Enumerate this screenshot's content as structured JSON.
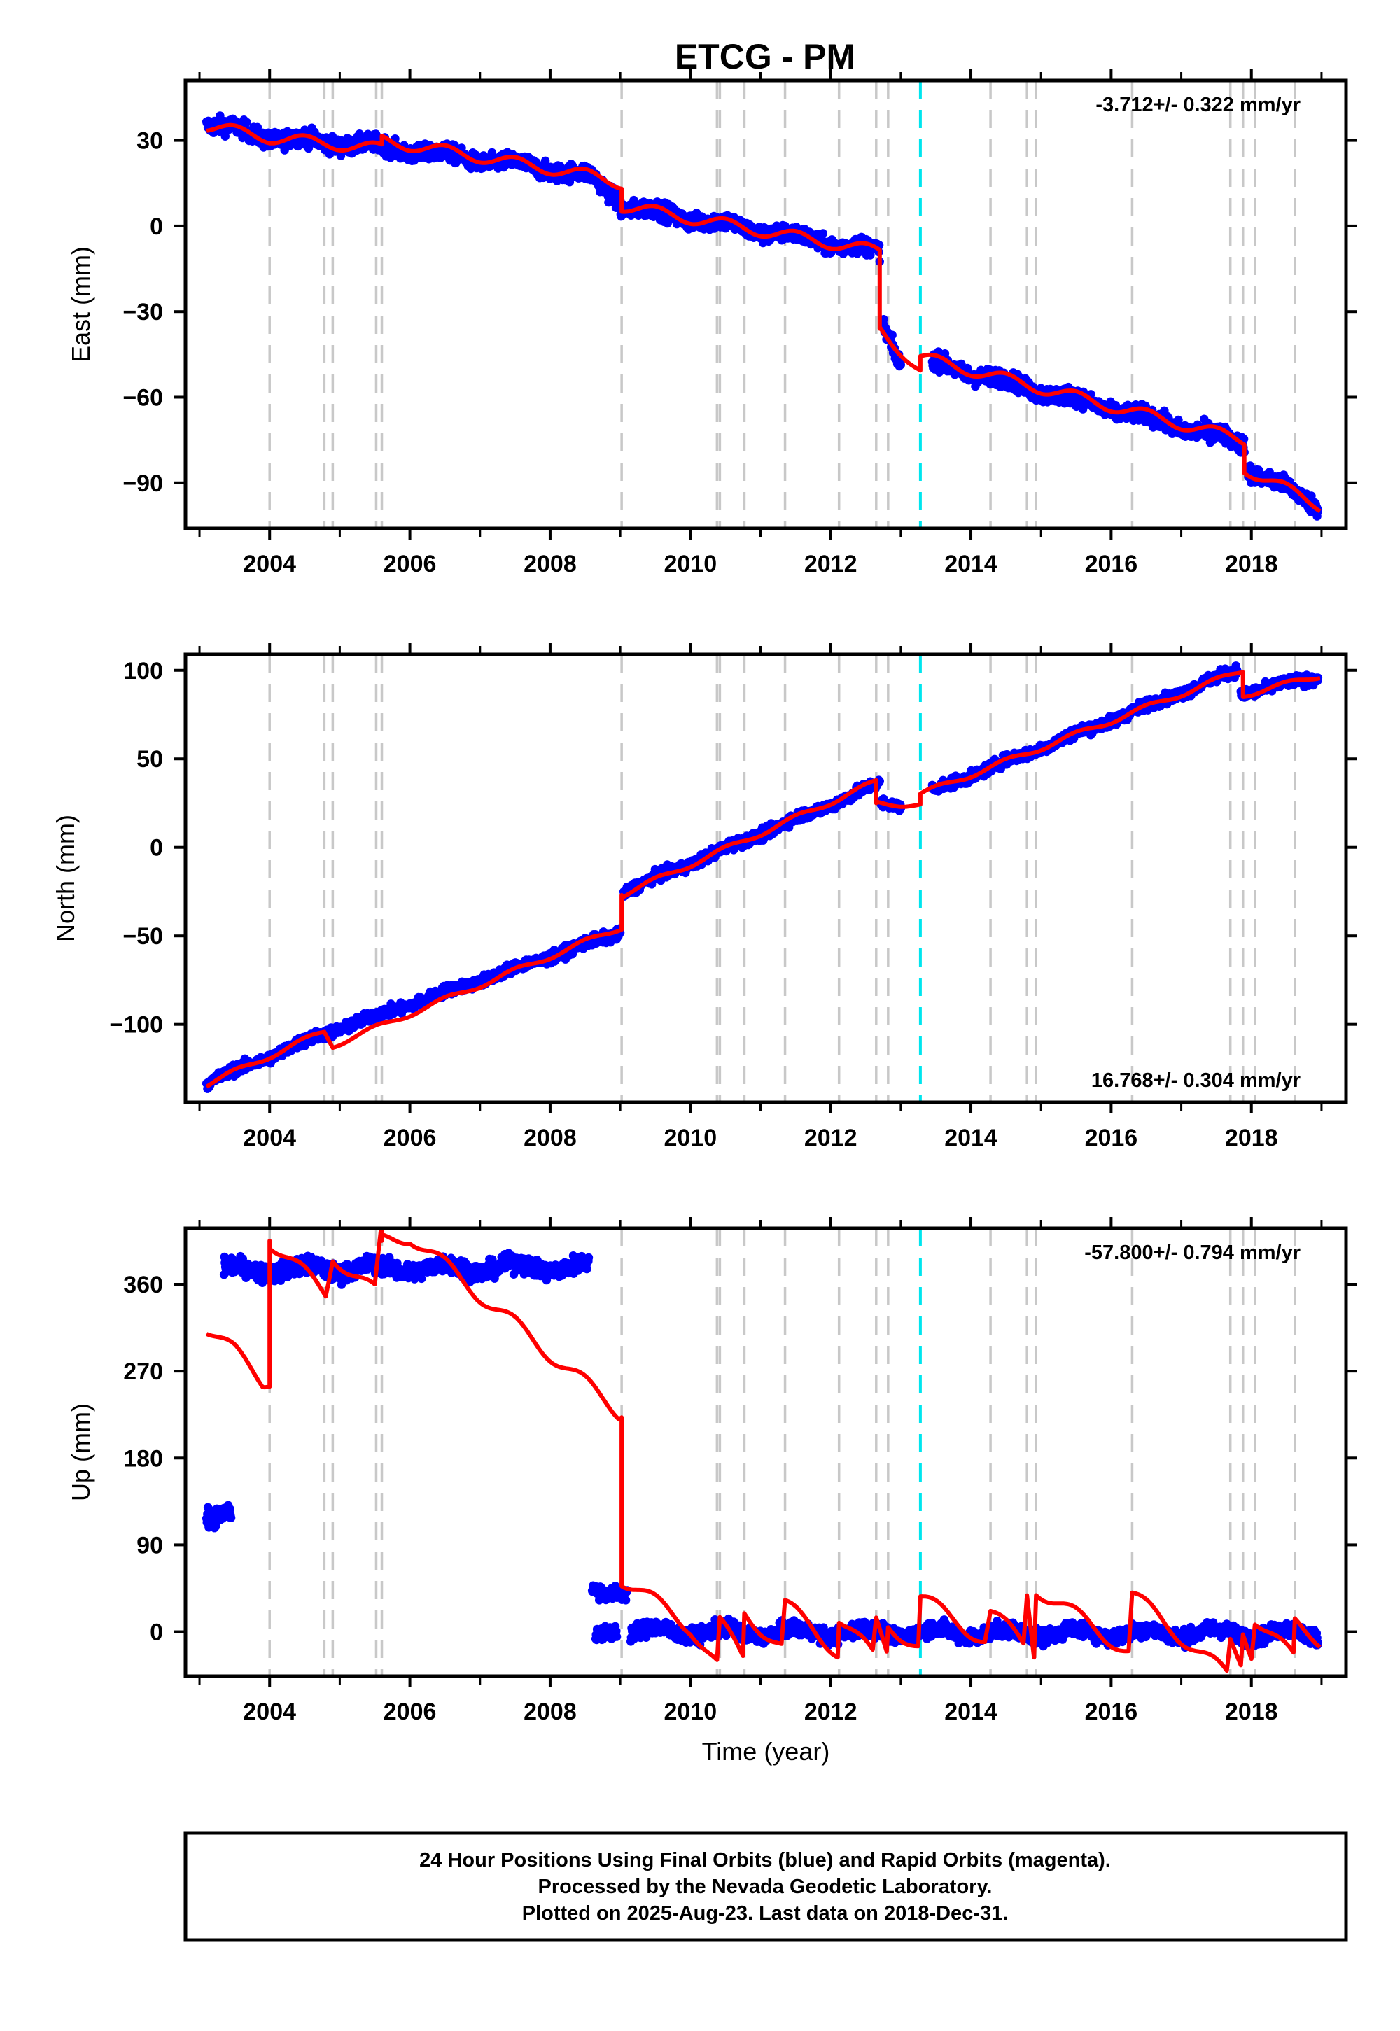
{
  "title": "ETCG - PM",
  "footer": {
    "lines": [
      "24 Hour Positions Using Final Orbits (blue) and Rapid Orbits (magenta).",
      "Processed by the Nevada Geodetic Laboratory.",
      "Plotted on 2025-Aug-23. Last data on 2018-Dec-31."
    ]
  },
  "colors": {
    "data_points": "#0000ff",
    "model_line": "#ff0000",
    "event_line": "#c8c8c8",
    "equipment_line": "#00e5ee"
  },
  "chart_data": [
    {
      "type": "scatter",
      "name": "east",
      "ylabel": "East (mm)",
      "xlim": [
        2002.8,
        2019.35
      ],
      "ylim": [
        -106,
        51
      ],
      "yticks": [
        -90,
        -60,
        -30,
        0,
        30
      ],
      "xticks": [
        2004,
        2006,
        2008,
        2010,
        2012,
        2014,
        2016,
        2018
      ],
      "rate_label": "-3.712+/- 0.322 mm/yr",
      "rate_position": "top-right",
      "event_years": [
        2004.0,
        2004.78,
        2004.9,
        2005.52,
        2005.6,
        2009.02,
        2010.38,
        2010.42,
        2010.77,
        2011.35,
        2012.12,
        2012.65,
        2012.82,
        2014.28,
        2014.8,
        2014.93,
        2016.3,
        2017.7,
        2017.88,
        2018.05,
        2018.62
      ],
      "equipment_years": [
        2013.28
      ],
      "series": [
        {
          "name": "final",
          "segments": [
            {
              "x": [
                2003.1,
                2004.0,
                2005.5,
                2008.0,
                2008.6,
                2009.0
              ],
              "y": [
                36,
                31,
                28,
                20,
                17,
                9
              ],
              "spread": 3
            },
            {
              "x": [
                2009.0,
                2012.7
              ],
              "y": [
                7,
                -9
              ],
              "spread": 3
            },
            {
              "x": [
                2012.75,
                2013.0
              ],
              "y": [
                -35,
                -48
              ],
              "spread": 3
            },
            {
              "x": [
                2013.45,
                2017.9
              ],
              "y": [
                -48,
                -76
              ],
              "spread": 3
            },
            {
              "x": [
                2017.95,
                2018.95
              ],
              "y": [
                -85,
                -98
              ],
              "spread": 3
            }
          ]
        }
      ],
      "model": {
        "x": [
          2003.1,
          2004.0,
          2005.6,
          2005.6,
          2008.5,
          2009.02,
          2009.02,
          2012.7,
          2012.7,
          2013.02,
          2013.28,
          2013.28,
          2017.9,
          2017.9,
          2018.98
        ],
        "y": [
          35,
          31,
          27,
          30,
          18,
          15,
          7,
          -9,
          -36,
          -44,
          -51,
          -46,
          -75,
          -85,
          -98
        ],
        "annual_amp": 2.0
      }
    },
    {
      "type": "scatter",
      "name": "north",
      "ylabel": "North (mm)",
      "xlim": [
        2002.8,
        2019.35
      ],
      "ylim": [
        -144,
        109
      ],
      "yticks": [
        -100,
        -50,
        0,
        50,
        100
      ],
      "xticks": [
        2004,
        2006,
        2008,
        2010,
        2012,
        2014,
        2016,
        2018
      ],
      "rate_label": "16.768+/- 0.304 mm/yr",
      "rate_position": "bottom-right",
      "event_years": [
        2004.0,
        2004.78,
        2004.9,
        2005.52,
        2005.6,
        2009.02,
        2010.38,
        2010.42,
        2010.77,
        2011.35,
        2012.12,
        2012.65,
        2012.82,
        2014.28,
        2014.8,
        2014.93,
        2016.3,
        2017.7,
        2017.88,
        2018.05,
        2018.62
      ],
      "equipment_years": [
        2013.28
      ],
      "series": [
        {
          "name": "final",
          "segments": [
            {
              "x": [
                2003.1,
                2004.8,
                2009.0
              ],
              "y": [
                -133,
                -105,
                -48
              ],
              "spread": 3
            },
            {
              "x": [
                2009.05,
                2012.7
              ],
              "y": [
                -25,
                36
              ],
              "spread": 3
            },
            {
              "x": [
                2012.72,
                2013.0
              ],
              "y": [
                25,
                24
              ],
              "spread": 3
            },
            {
              "x": [
                2013.45,
                2017.8
              ],
              "y": [
                32,
                100
              ],
              "spread": 3
            },
            {
              "x": [
                2017.85,
                2018.95
              ],
              "y": [
                87,
                96
              ],
              "spread": 3
            }
          ]
        }
      ],
      "model": {
        "x": [
          2003.1,
          2004.78,
          2004.9,
          2009.02,
          2009.02,
          2012.65,
          2012.65,
          2013.28,
          2013.28,
          2017.88,
          2017.88,
          2018.98
        ],
        "y": [
          -134,
          -104,
          -112,
          -45,
          -27,
          37,
          25,
          24,
          30,
          100,
          86,
          97
        ],
        "annual_amp": 1.5
      }
    },
    {
      "type": "scatter",
      "name": "up",
      "ylabel": "Up (mm)",
      "xlabel": "Time (year)",
      "xlim": [
        2002.8,
        2019.35
      ],
      "ylim": [
        -46,
        418
      ],
      "yticks": [
        0,
        90,
        180,
        270,
        360
      ],
      "xticks": [
        2004,
        2006,
        2008,
        2010,
        2012,
        2014,
        2016,
        2018
      ],
      "rate_label": "-57.800+/- 0.794 mm/yr",
      "rate_position": "top-right",
      "event_years": [
        2004.0,
        2004.78,
        2004.9,
        2005.52,
        2005.6,
        2009.02,
        2010.38,
        2010.42,
        2010.77,
        2011.35,
        2012.12,
        2012.65,
        2012.82,
        2014.28,
        2014.8,
        2014.93,
        2016.3,
        2017.7,
        2017.88,
        2018.05,
        2018.62
      ],
      "equipment_years": [
        2013.28
      ],
      "series": [
        {
          "name": "final",
          "segments": [
            {
              "x": [
                2003.1,
                2003.45
              ],
              "y": [
                120,
                118
              ],
              "spread": 10
            },
            {
              "x": [
                2003.35,
                2008.55
              ],
              "y": [
                375,
                378
              ],
              "spread": 9
            },
            {
              "x": [
                2008.65,
                2008.95
              ],
              "y": [
                -5,
                5
              ],
              "spread": 8
            },
            {
              "x": [
                2008.6,
                2009.1
              ],
              "y": [
                40,
                45
              ],
              "spread": 8
            },
            {
              "x": [
                2009.15,
                2018.95
              ],
              "y": [
                0,
                -2
              ],
              "spread": 8
            }
          ]
        }
      ],
      "model": {
        "x": [
          2003.1,
          2003.5,
          2003.9,
          2004.0,
          2004.0,
          2004.8,
          2004.9,
          2005.5,
          2005.6,
          2005.6,
          2006.0,
          2008.98,
          2009.02,
          2009.02,
          2010.0,
          2010.38,
          2010.42,
          2010.75,
          2010.77,
          2011.3,
          2011.35,
          2012.1,
          2012.12,
          2012.6,
          2012.65,
          2012.8,
          2012.82,
          2013.25,
          2013.28,
          2014.2,
          2014.28,
          2014.75,
          2014.8,
          2014.9,
          2014.93,
          2016.25,
          2016.3,
          2017.65,
          2017.7,
          2017.85,
          2017.88,
          2018.0,
          2018.05,
          2018.6,
          2018.62,
          2018.98
        ],
        "y": [
          315,
          290,
          260,
          262,
          405,
          350,
          390,
          352,
          418,
          405,
          410,
          228,
          230,
          55,
          5,
          -35,
          8,
          -25,
          20,
          -15,
          28,
          -20,
          15,
          -25,
          10,
          -18,
          8,
          -15,
          35,
          -8,
          20,
          -12,
          40,
          -20,
          45,
          -20,
          38,
          -45,
          -10,
          -30,
          3,
          -20,
          15,
          -28,
          8,
          -8
        ],
        "annual_amp": 8
      }
    }
  ]
}
